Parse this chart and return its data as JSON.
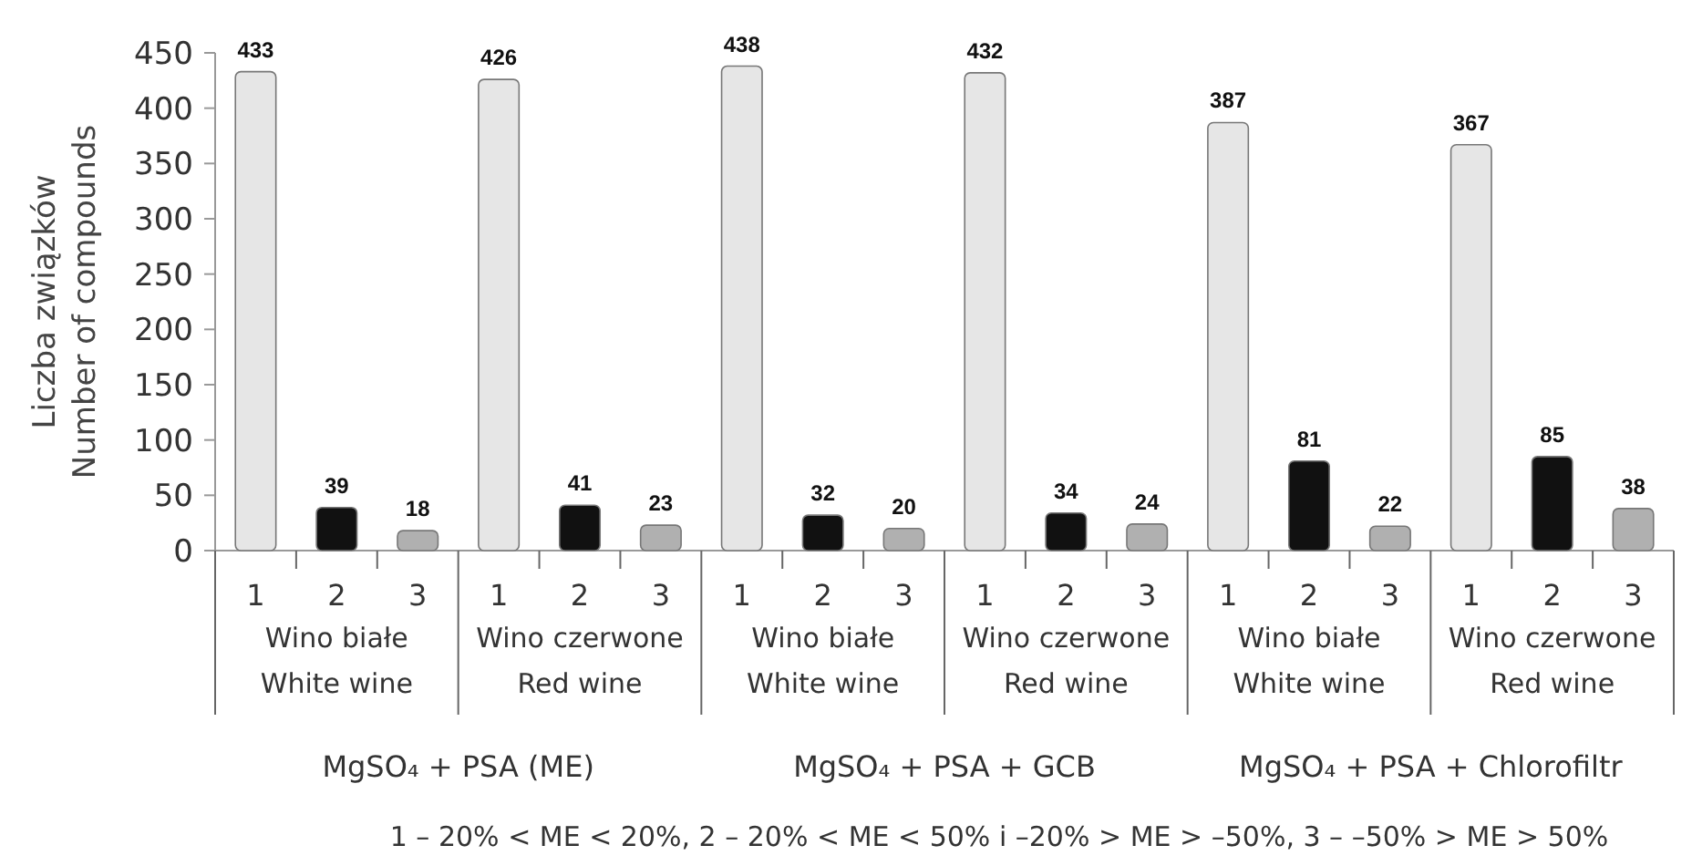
{
  "chart_data": {
    "type": "bar",
    "ylabel": "Liczba związków\nNumber of compounds",
    "categories": [
      "1",
      "2",
      "3",
      "1",
      "2",
      "3",
      "1",
      "2",
      "3",
      "1",
      "2",
      "3",
      "1",
      "2",
      "3",
      "1",
      "2",
      "3"
    ],
    "values": [
      433,
      39,
      18,
      426,
      41,
      23,
      438,
      32,
      20,
      432,
      34,
      24,
      387,
      81,
      22,
      367,
      85,
      38
    ],
    "colors": [
      "#e6e6e6",
      "#111111",
      "#b0b0b0",
      "#e6e6e6",
      "#111111",
      "#b0b0b0",
      "#e6e6e6",
      "#111111",
      "#b0b0b0",
      "#e6e6e6",
      "#111111",
      "#b0b0b0",
      "#e6e6e6",
      "#111111",
      "#b0b0b0",
      "#e6e6e6",
      "#111111",
      "#b0b0b0"
    ],
    "data_labels": true,
    "ylim": [
      0,
      450
    ],
    "yticks": [
      0,
      50,
      100,
      150,
      200,
      250,
      300,
      350,
      400,
      450
    ],
    "grid": false,
    "annotations": [
      "Wino białe\nWhite wine",
      "Wino czerwone\nRed wine",
      "Wino białe\nWhite wine",
      "Wino czerwone\nRed wine",
      "Wino białe\nWhite wine",
      "Wino czerwone\nRed wine",
      "MgSO₄ + PSA   (ME)",
      "MgSO₄ + PSA + GCB",
      "MgSO₄ + PSA + Chlorofiltr",
      "1 – 20% < ME < 20%,  2 – 20% < ME < 50% i –20% > ME > –50%,   3  – –50% > ME > 50%"
    ]
  }
}
